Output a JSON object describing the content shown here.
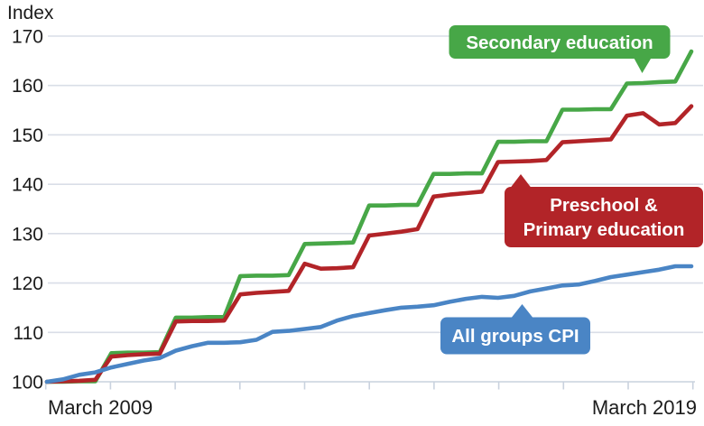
{
  "chart_data": {
    "type": "line",
    "title": "",
    "xlabel": "",
    "ylabel": "Index",
    "ylim": [
      100,
      170
    ],
    "yticks": [
      100,
      110,
      120,
      130,
      140,
      150,
      160,
      170
    ],
    "grid": "horizontal",
    "legend_position": "inline-callouts",
    "x_start_label": "March 2009",
    "x_end_label": "March 2019",
    "x_frequency": "quarterly",
    "n_points": 41,
    "n_year_ticks": 11,
    "series": [
      {
        "name": "Secondary education",
        "color": "#47a747",
        "values": [
          100.0,
          100.0,
          100.1,
          100.1,
          105.8,
          105.9,
          105.9,
          106.0,
          113.0,
          113.0,
          113.1,
          113.1,
          121.4,
          121.5,
          121.5,
          121.6,
          127.9,
          128.0,
          128.1,
          128.2,
          135.7,
          135.7,
          135.8,
          135.8,
          142.1,
          142.1,
          142.2,
          142.2,
          148.6,
          148.6,
          148.7,
          148.7,
          155.1,
          155.1,
          155.2,
          155.2,
          160.4,
          160.5,
          160.7,
          160.8,
          166.9
        ]
      },
      {
        "name": "Preschool & Primary education",
        "color": "#b22428",
        "values": [
          100.0,
          100.1,
          100.2,
          100.4,
          105.1,
          105.4,
          105.6,
          105.7,
          112.2,
          112.3,
          112.3,
          112.4,
          117.7,
          118.0,
          118.2,
          118.4,
          123.9,
          122.9,
          123.0,
          123.2,
          129.6,
          130.0,
          130.4,
          130.9,
          137.5,
          137.9,
          138.2,
          138.5,
          144.5,
          144.6,
          144.7,
          144.9,
          148.5,
          148.7,
          148.9,
          149.1,
          153.9,
          154.4,
          152.1,
          152.4,
          155.8
        ]
      },
      {
        "name": "All groups CPI",
        "color": "#4a85c5",
        "values": [
          100.0,
          100.5,
          101.4,
          101.9,
          102.9,
          103.6,
          104.3,
          104.8,
          106.3,
          107.2,
          107.9,
          107.9,
          108.0,
          108.5,
          110.1,
          110.3,
          110.7,
          111.1,
          112.4,
          113.3,
          113.9,
          114.5,
          115.0,
          115.2,
          115.5,
          116.2,
          116.8,
          117.2,
          117.0,
          117.4,
          118.3,
          118.9,
          119.5,
          119.7,
          120.4,
          121.2,
          121.7,
          122.2,
          122.7,
          123.4,
          123.4
        ]
      }
    ],
    "annotations": [
      {
        "id": "secondary-education",
        "lines": [
          "Secondary education"
        ],
        "color": "#47a747"
      },
      {
        "id": "preschool-primary-education",
        "lines": [
          "Preschool &",
          "Primary education"
        ],
        "color": "#b22428"
      },
      {
        "id": "all-groups-cpi",
        "lines": [
          "All groups CPI"
        ],
        "color": "#4a85c5"
      }
    ]
  }
}
